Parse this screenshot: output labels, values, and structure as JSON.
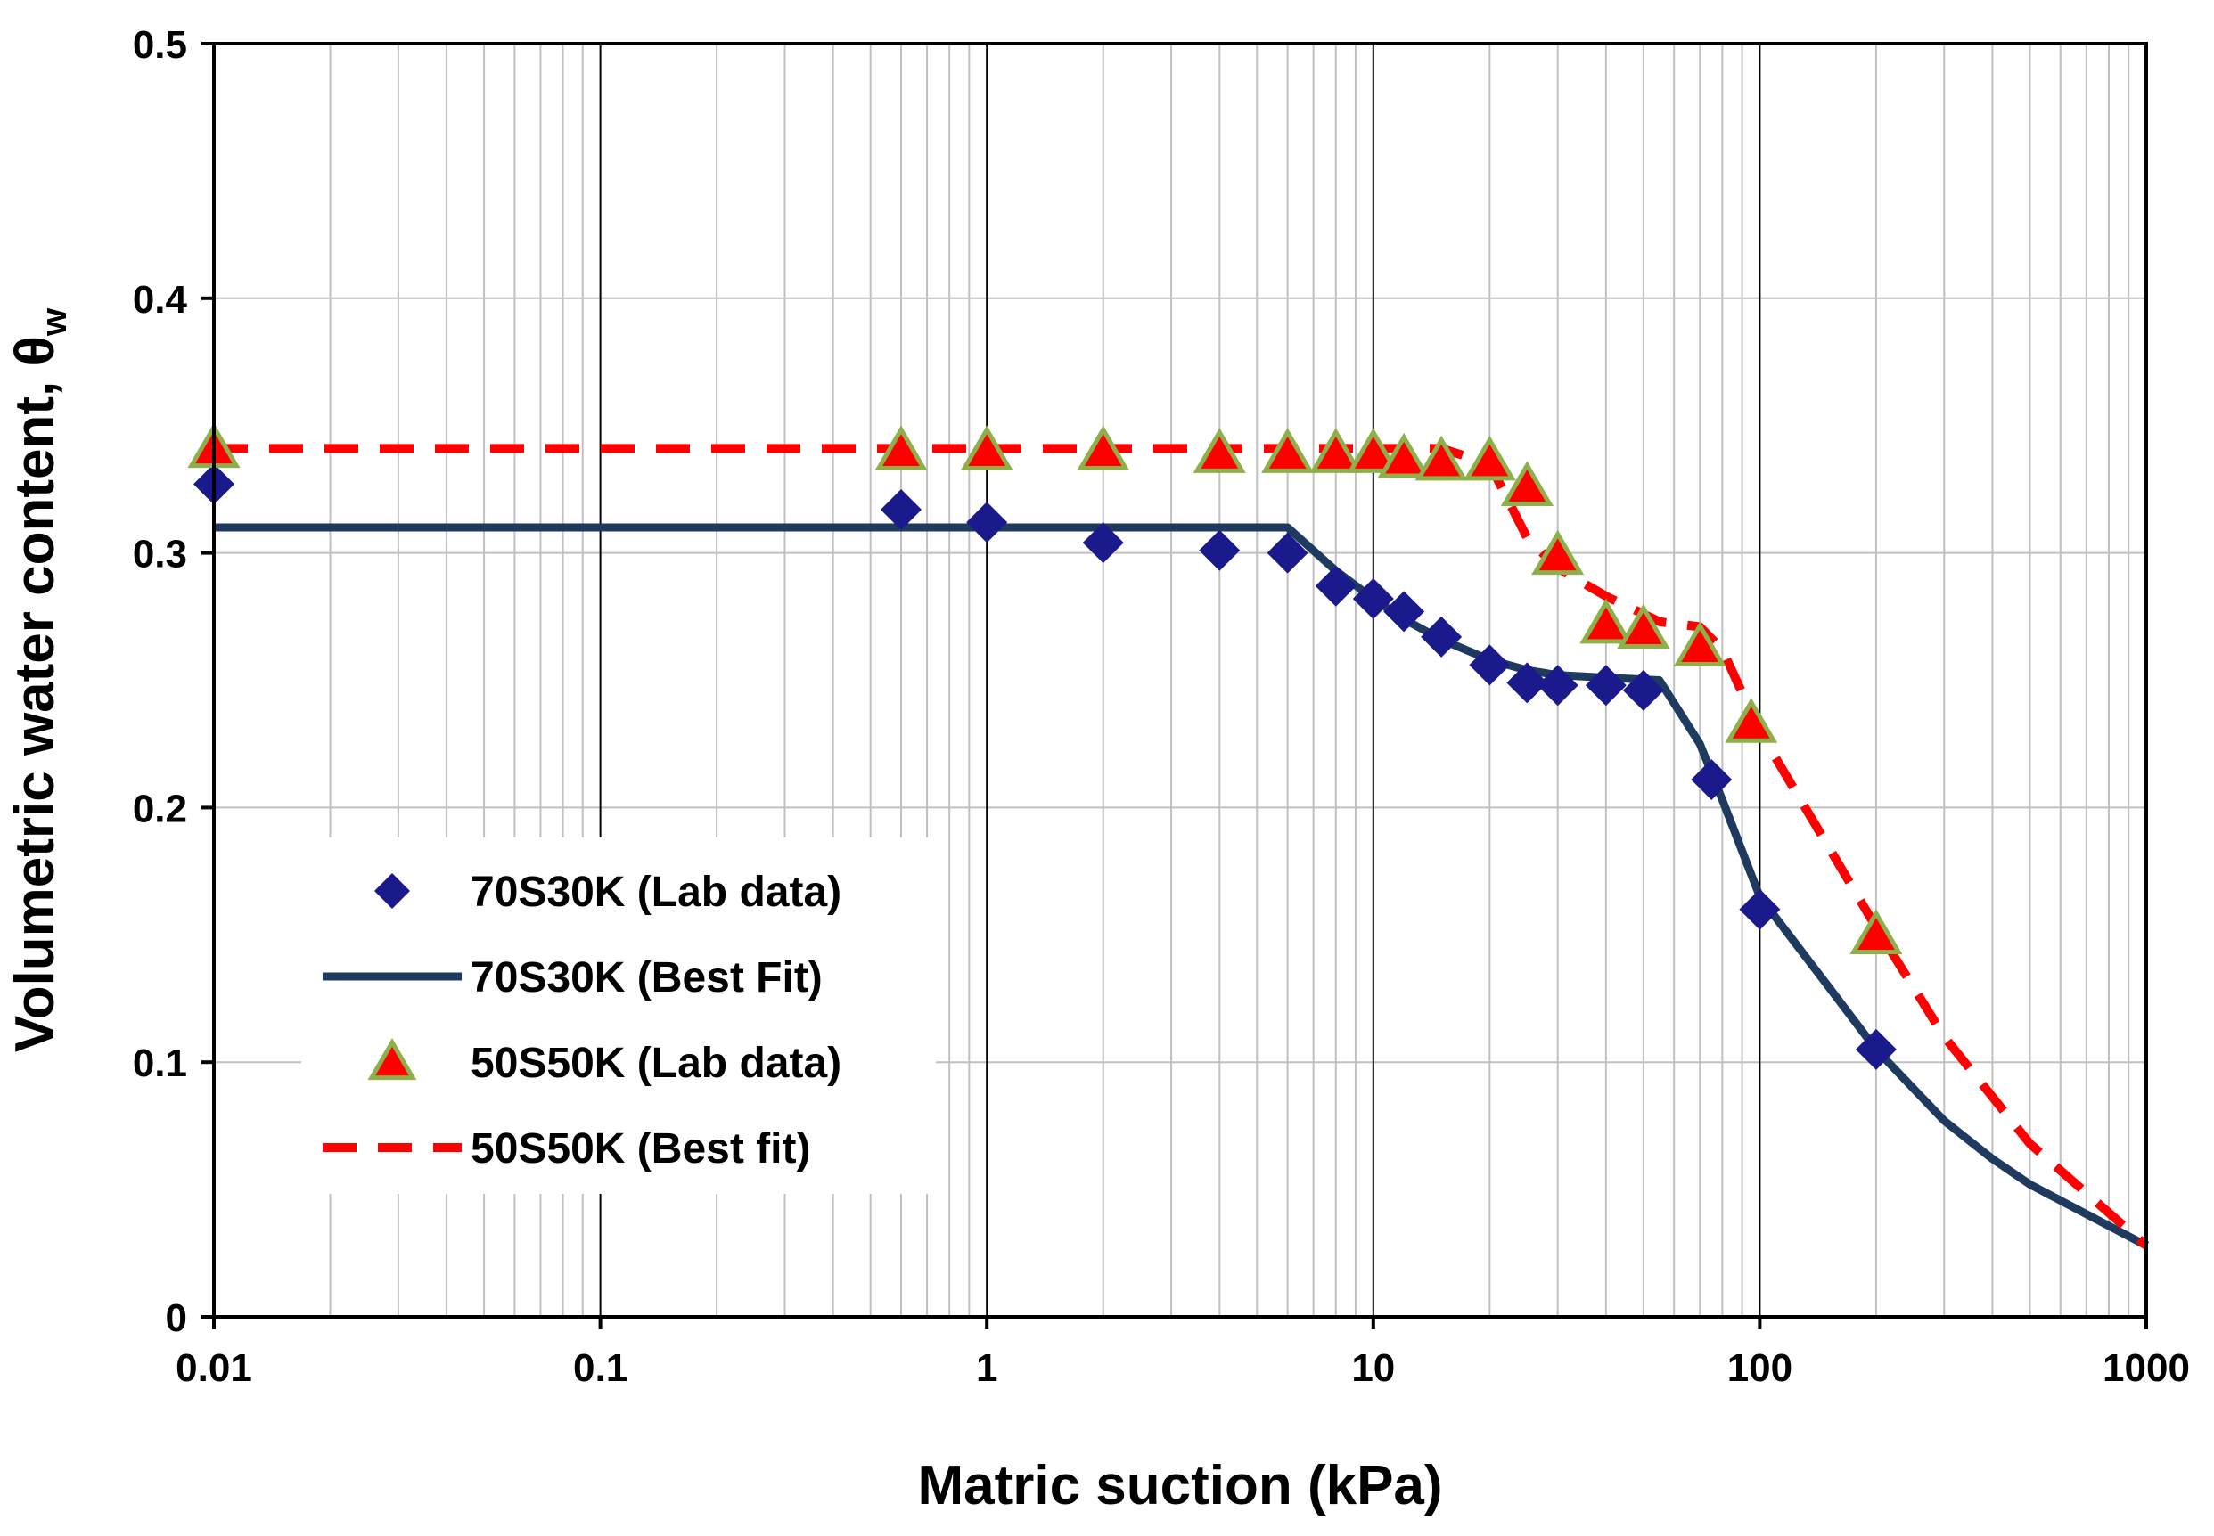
{
  "chart_data": {
    "type": "scatter",
    "title": "",
    "xlabel": "Matric suction (kPa)",
    "ylabel": "Volumetric water content, θ",
    "ylabel_subscript": "w",
    "x_scale": "log",
    "xlim": [
      0.01,
      1000
    ],
    "ylim": [
      0,
      0.5
    ],
    "x_tick_labels": [
      "0.01",
      "0.1",
      "1",
      "10",
      "100",
      "1000"
    ],
    "x_tick_values": [
      0.01,
      0.1,
      1,
      10,
      100,
      1000
    ],
    "y_tick_labels": [
      "0",
      "0.1",
      "0.2",
      "0.3",
      "0.4",
      "0.5"
    ],
    "y_tick_values": [
      0,
      0.1,
      0.2,
      0.3,
      0.4,
      0.5
    ],
    "grid": {
      "major": true,
      "minor_x": true
    },
    "legend_position": "center-left",
    "series": [
      {
        "name": "70S30K (Lab data)",
        "kind": "markers",
        "marker": "diamond",
        "color": "#1a1a8c",
        "x": [
          0.01,
          0.6,
          1,
          2,
          4,
          6,
          8,
          10,
          12,
          15,
          20,
          25,
          30,
          40,
          50,
          75,
          100,
          200
        ],
        "y": [
          0.327,
          0.317,
          0.312,
          0.304,
          0.301,
          0.3,
          0.287,
          0.282,
          0.277,
          0.267,
          0.256,
          0.249,
          0.248,
          0.248,
          0.246,
          0.211,
          0.16,
          0.105
        ]
      },
      {
        "name": "70S30K (Best Fit)",
        "kind": "line",
        "line_style": "solid",
        "color": "#1f3a5f",
        "x": [
          0.01,
          6,
          8,
          10,
          12,
          15,
          20,
          25,
          30,
          40,
          55,
          70,
          80,
          100,
          150,
          200,
          300,
          400,
          500,
          1000
        ],
        "y": [
          0.31,
          0.31,
          0.293,
          0.282,
          0.274,
          0.266,
          0.258,
          0.254,
          0.252,
          0.251,
          0.25,
          0.225,
          0.203,
          0.165,
          0.13,
          0.105,
          0.077,
          0.062,
          0.052,
          0.028
        ]
      },
      {
        "name": "50S50K (Lab data)",
        "kind": "markers",
        "marker": "triangle",
        "color": "#ff0000",
        "edge_color": "#8db04a",
        "x": [
          0.01,
          0.6,
          1,
          2,
          4,
          6,
          8,
          10,
          12,
          15,
          20,
          25,
          30,
          40,
          50,
          70,
          95,
          200
        ],
        "y": [
          0.341,
          0.34,
          0.34,
          0.34,
          0.339,
          0.339,
          0.339,
          0.339,
          0.337,
          0.336,
          0.336,
          0.326,
          0.299,
          0.272,
          0.27,
          0.263,
          0.233,
          0.15
        ]
      },
      {
        "name": "50S50K (Best fit)",
        "kind": "line",
        "line_style": "dashed",
        "color": "#ff0000",
        "x": [
          0.01,
          15,
          20,
          25,
          30,
          40,
          55,
          70,
          80,
          100,
          150,
          200,
          300,
          500,
          1000
        ],
        "y": [
          0.341,
          0.341,
          0.335,
          0.306,
          0.294,
          0.283,
          0.273,
          0.271,
          0.262,
          0.23,
          0.185,
          0.153,
          0.11,
          0.068,
          0.028
        ]
      }
    ]
  }
}
